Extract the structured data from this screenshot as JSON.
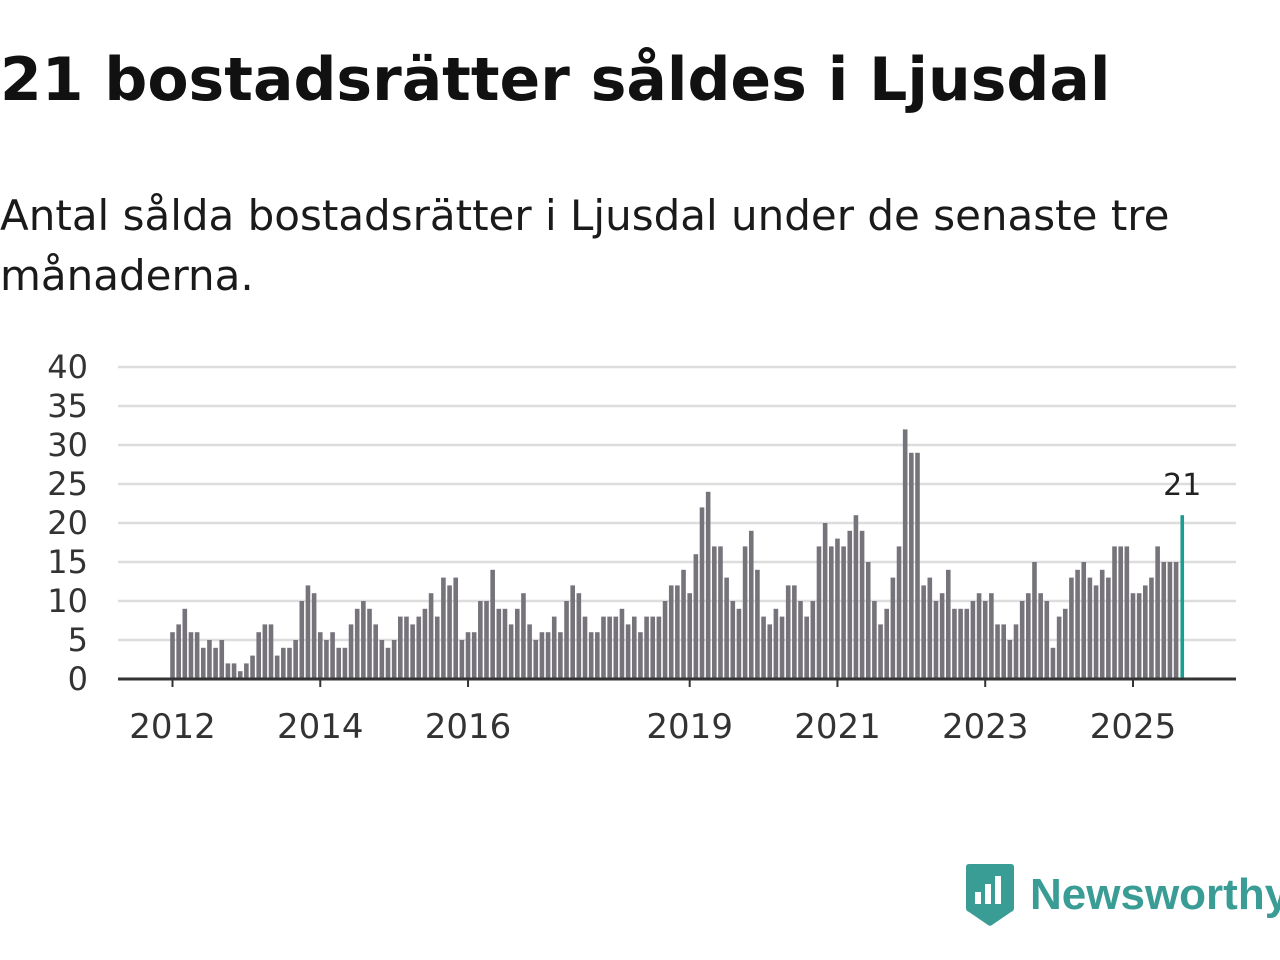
{
  "header": {
    "title": "21 bostadsrätter såldes i Ljusdal",
    "subtitle": "Antal sålda bostadsrätter i Ljusdal under de senaste tre månaderna."
  },
  "brand": {
    "name": "Newsworthy",
    "icon": "newsworthy-logo-icon",
    "color": "#3a9d95"
  },
  "colors": {
    "bar": "#76747a",
    "highlight": "#1a9e91",
    "grid": "#dddddd",
    "axis": "#333333"
  },
  "chart_data": {
    "type": "bar",
    "title": "",
    "xlabel": "",
    "ylabel": "",
    "ylim": [
      0,
      40
    ],
    "yticks": [
      0,
      5,
      10,
      15,
      20,
      25,
      30,
      35,
      40
    ],
    "grid": true,
    "start": "2012-01",
    "xticks": [
      {
        "label": "2012",
        "index": 0
      },
      {
        "label": "2014",
        "index": 24
      },
      {
        "label": "2016",
        "index": 48
      },
      {
        "label": "2019",
        "index": 84
      },
      {
        "label": "2021",
        "index": 108
      },
      {
        "label": "2023",
        "index": 132
      },
      {
        "label": "2025",
        "index": 156
      }
    ],
    "values": [
      6,
      7,
      9,
      6,
      6,
      4,
      5,
      4,
      5,
      2,
      2,
      1,
      2,
      3,
      6,
      7,
      7,
      3,
      4,
      4,
      5,
      10,
      12,
      11,
      6,
      5,
      6,
      4,
      4,
      7,
      9,
      10,
      9,
      7,
      5,
      4,
      5,
      8,
      8,
      7,
      8,
      9,
      11,
      8,
      13,
      12,
      13,
      5,
      6,
      6,
      10,
      10,
      14,
      9,
      9,
      7,
      9,
      11,
      7,
      5,
      6,
      6,
      8,
      6,
      10,
      12,
      11,
      8,
      6,
      6,
      8,
      8,
      8,
      9,
      7,
      8,
      6,
      8,
      8,
      8,
      10,
      12,
      12,
      14,
      11,
      16,
      22,
      24,
      17,
      17,
      13,
      10,
      9,
      17,
      19,
      14,
      8,
      7,
      9,
      8,
      12,
      12,
      10,
      8,
      10,
      17,
      20,
      17,
      18,
      17,
      19,
      21,
      19,
      15,
      10,
      7,
      9,
      13,
      17,
      32,
      29,
      29,
      12,
      13,
      10,
      11,
      14,
      9,
      9,
      9,
      10,
      11,
      10,
      11,
      7,
      7,
      5,
      7,
      10,
      11,
      15,
      11,
      10,
      4,
      8,
      9,
      13,
      14,
      15,
      13,
      12,
      14,
      13,
      17,
      17,
      17,
      11,
      11,
      12,
      13,
      17,
      15,
      15,
      15,
      21
    ],
    "highlight": {
      "index": 164,
      "value": 21,
      "label": "21"
    }
  }
}
